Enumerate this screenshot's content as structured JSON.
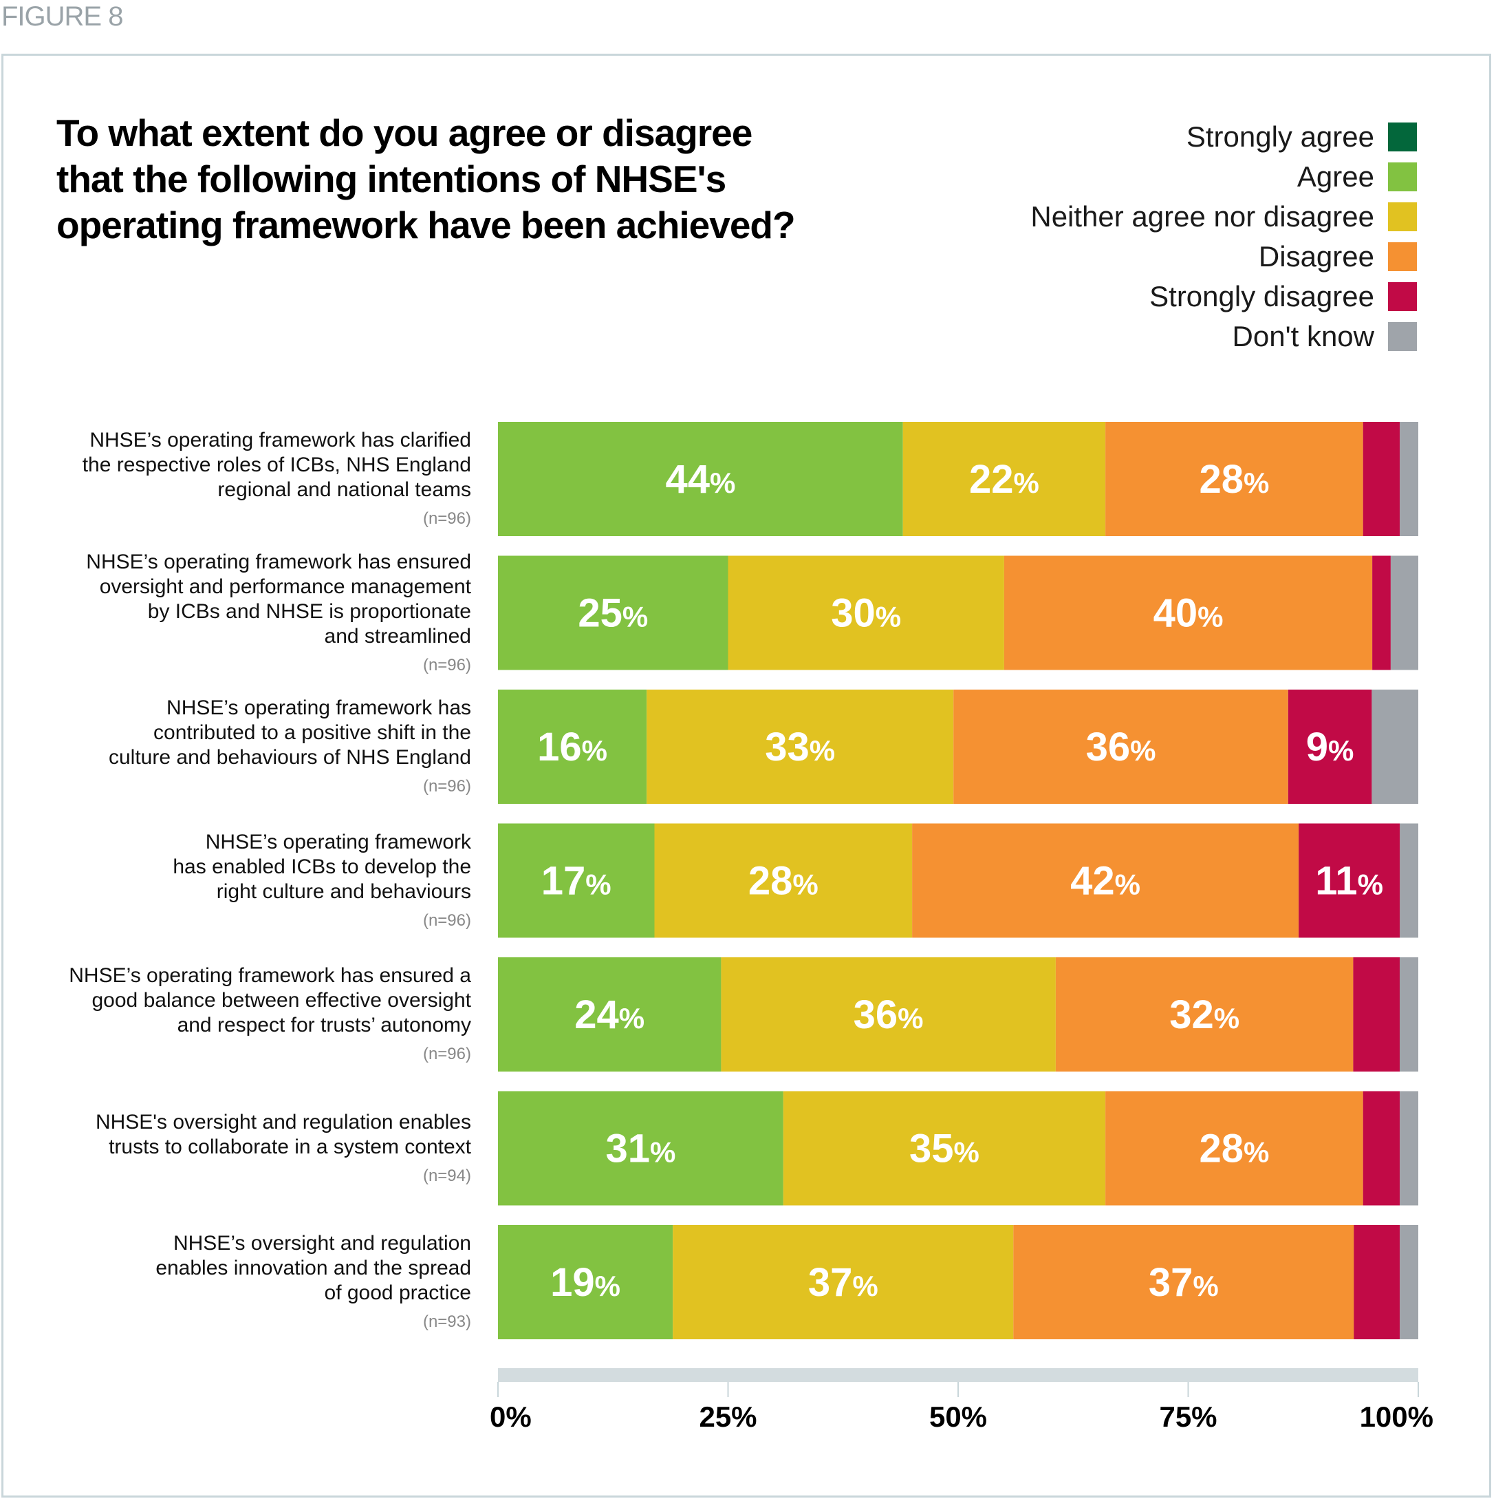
{
  "figure_label": "FIGURE 8",
  "chart_data": {
    "type": "bar",
    "orientation": "horizontal-stacked-100",
    "title": "To what extent do you agree or disagree that the following intentions of NHSE's operating framework have been achieved?",
    "xlabel": "",
    "ylabel": "",
    "xlim": [
      0,
      100
    ],
    "x_ticks": [
      "0%",
      "25%",
      "50%",
      "75%",
      "100%"
    ],
    "x_tick_values": [
      0,
      25,
      50,
      75,
      100
    ],
    "legend_position": "top-right",
    "legend": [
      {
        "name": "Strongly agree",
        "color": "#03673b"
      },
      {
        "name": "Agree",
        "color": "#82c241"
      },
      {
        "name": "Neither agree nor disagree",
        "color": "#e1c221"
      },
      {
        "name": "Disagree",
        "color": "#f59132"
      },
      {
        "name": "Strongly disagree",
        "color": "#c10a46"
      },
      {
        "name": "Don't know",
        "color": "#9fa4aa"
      }
    ],
    "categories": [
      {
        "lines": [
          "NHSE’s operating framework has clarified",
          "the respective roles of ICBs, NHS England",
          "regional and national teams"
        ],
        "n": "(n=96)"
      },
      {
        "lines": [
          "NHSE’s operating framework has ensured",
          "oversight and performance management",
          "by ICBs and NHSE is proportionate",
          "and streamlined"
        ],
        "n": "(n=96)"
      },
      {
        "lines": [
          "NHSE’s operating framework has",
          "contributed to a positive shift in the",
          "culture and behaviours of NHS England"
        ],
        "n": "(n=96)"
      },
      {
        "lines": [
          "NHSE’s operating framework",
          "has enabled ICBs to develop the",
          "right culture and behaviours"
        ],
        "n": "(n=96)"
      },
      {
        "lines": [
          "NHSE’s operating framework has ensured a",
          "good balance between effective oversight",
          "and respect for trusts’ autonomy"
        ],
        "n": "(n=96)"
      },
      {
        "lines": [
          "NHSE's oversight and regulation enables",
          "trusts to collaborate in a system context"
        ],
        "n": "(n=94)"
      },
      {
        "lines": [
          "NHSE’s oversight and regulation",
          "enables innovation and the spread",
          "of good practice"
        ],
        "n": "(n=93)"
      }
    ],
    "series": [
      {
        "name": "Strongly agree",
        "values": [
          0,
          0,
          0,
          0,
          0,
          0,
          0
        ]
      },
      {
        "name": "Agree",
        "values": [
          44,
          25,
          16,
          17,
          24,
          31,
          19
        ]
      },
      {
        "name": "Neither agree nor disagree",
        "values": [
          22,
          30,
          33,
          28,
          36,
          35,
          37
        ]
      },
      {
        "name": "Disagree",
        "values": [
          28,
          40,
          36,
          42,
          32,
          28,
          37
        ]
      },
      {
        "name": "Strongly disagree",
        "values": [
          4,
          2,
          9,
          11,
          5,
          4,
          5
        ]
      },
      {
        "name": "Don't know",
        "values": [
          2,
          3,
          5,
          2,
          2,
          2,
          2
        ]
      }
    ],
    "data_labels": [
      [
        "",
        "44",
        "22",
        "28",
        "",
        ""
      ],
      [
        "",
        "25",
        "30",
        "40",
        "",
        ""
      ],
      [
        "",
        "16",
        "33",
        "36",
        "9",
        ""
      ],
      [
        "",
        "17",
        "28",
        "42",
        "11",
        ""
      ],
      [
        "",
        "24",
        "36",
        "32",
        "",
        ""
      ],
      [
        "",
        "31",
        "35",
        "28",
        "",
        ""
      ],
      [
        "",
        "19",
        "37",
        "37",
        "",
        ""
      ]
    ],
    "percent_sign": "%"
  }
}
